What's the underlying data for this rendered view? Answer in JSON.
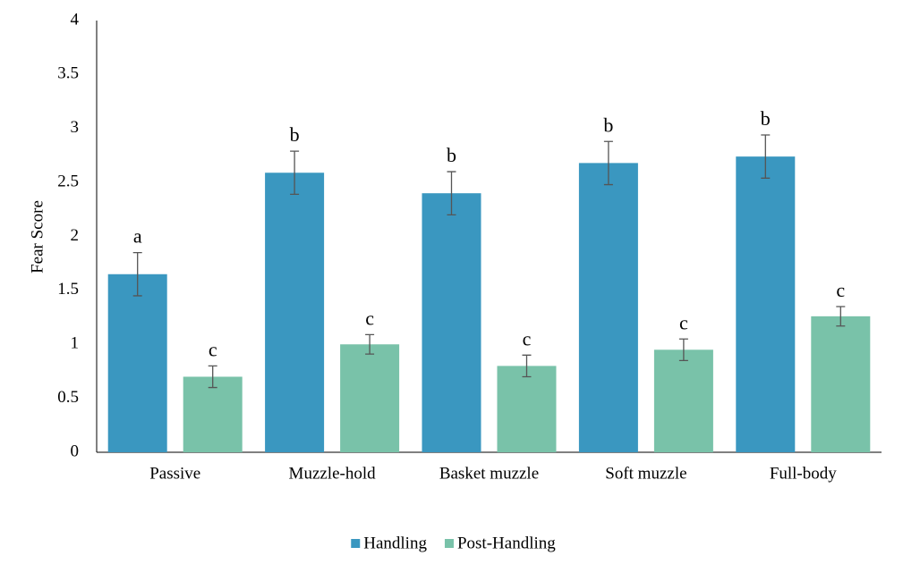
{
  "chart_data": {
    "type": "bar",
    "ylabel": "Fear Score",
    "categories": [
      "Passive",
      "Muzzle-hold",
      "Basket muzzle",
      "Soft muzzle",
      "Full-body"
    ],
    "series": [
      {
        "name": "Handling",
        "color": "#3a97c0",
        "values": [
          1.65,
          2.59,
          2.4,
          2.68,
          2.74
        ],
        "errors": [
          0.2,
          0.2,
          0.2,
          0.2,
          0.2
        ],
        "labels": [
          "a",
          "b",
          "b",
          "b",
          "b"
        ]
      },
      {
        "name": "Post-Handling",
        "color": "#79c2a9",
        "values": [
          0.7,
          1.0,
          0.8,
          0.95,
          1.26
        ],
        "errors": [
          0.1,
          0.09,
          0.1,
          0.1,
          0.09
        ],
        "labels": [
          "c",
          "c",
          "c",
          "c",
          "c"
        ]
      }
    ],
    "ylim": [
      0,
      4
    ],
    "yticks": [
      0,
      0.5,
      1,
      1.5,
      2,
      2.5,
      3,
      3.5,
      4
    ],
    "grid": false,
    "legend": "bottom"
  }
}
